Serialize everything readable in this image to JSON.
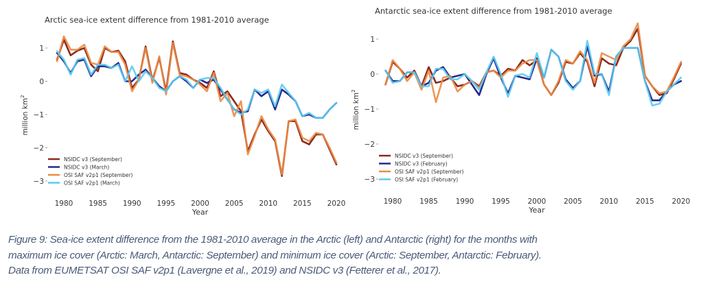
{
  "chart_data": [
    {
      "type": "line",
      "title": "Arctic sea-ice extent difference from 1981-2010 average",
      "xlabel": "Year",
      "ylabel": "million km²",
      "xlim": [
        1977.5,
        2021.5
      ],
      "ylim": [
        -3.3,
        1.4
      ],
      "xticks": [
        1980,
        1985,
        1990,
        1995,
        2000,
        2005,
        2010,
        2015,
        2020
      ],
      "xtick_labels": [
        "1980",
        "1985",
        "1990",
        "1995",
        "2000",
        "2005",
        "2010",
        "2015",
        "2020"
      ],
      "yticks": [
        1,
        0,
        -1,
        -2,
        -3
      ],
      "ytick_labels": [
        "1",
        "0",
        "−1",
        "−2",
        "−3"
      ],
      "grid": false,
      "legend_position": "bottom-left",
      "x_start": 1979,
      "series": [
        {
          "name": "NSIDC v3 (September)",
          "color": "#8b2a1e",
          "values": [
            0.65,
            1.25,
            0.78,
            0.92,
            1.0,
            0.5,
            0.3,
            1.0,
            0.88,
            0.92,
            0.6,
            -0.2,
            0.05,
            1.05,
            0.02,
            0.7,
            -0.3,
            1.2,
            0.25,
            0.2,
            0.05,
            -0.05,
            -0.2,
            0.3,
            -0.45,
            -0.3,
            -0.6,
            -0.9,
            -2.1,
            -1.6,
            -1.15,
            -1.5,
            -1.8,
            -2.85,
            -1.2,
            -1.2,
            -1.8,
            -1.9,
            -1.6,
            -1.6,
            -2.05,
            -2.5
          ]
        },
        {
          "name": "NSIDC v3 (March)",
          "color": "#252a8c",
          "values": [
            0.85,
            0.6,
            0.25,
            0.6,
            0.65,
            0.15,
            0.45,
            0.45,
            0.4,
            0.55,
            0.0,
            0.0,
            0.2,
            0.35,
            0.1,
            -0.15,
            -0.3,
            0.0,
            0.15,
            0.0,
            -0.2,
            0.05,
            -0.05,
            0.05,
            -0.25,
            -0.55,
            -0.85,
            -0.95,
            -0.9,
            -0.25,
            -0.45,
            -0.3,
            -0.85,
            -0.25,
            -0.4,
            -0.6,
            -1.05,
            -1.0,
            -1.1,
            -1.1,
            -0.85,
            -0.65
          ]
        },
        {
          "name": "OSI SAF v2p1 (September)",
          "color": "#ec8a43",
          "values": [
            0.6,
            1.35,
            0.95,
            0.95,
            1.1,
            0.55,
            0.5,
            1.05,
            0.88,
            0.88,
            0.5,
            -0.3,
            0.05,
            1.0,
            -0.05,
            0.75,
            -0.4,
            1.15,
            0.2,
            0.15,
            0.05,
            -0.1,
            -0.3,
            0.25,
            -0.6,
            -0.35,
            -1.05,
            -0.6,
            -2.2,
            -1.65,
            -1.05,
            -1.45,
            -1.75,
            -2.8,
            -1.2,
            -1.15,
            -1.7,
            -1.8,
            -1.55,
            -1.6,
            -2.0,
            -2.45
          ]
        },
        {
          "name": "OSI SAF v2p1 (March)",
          "color": "#5ccaf0",
          "values": [
            0.9,
            0.65,
            0.2,
            0.65,
            0.7,
            0.2,
            0.5,
            0.5,
            0.4,
            0.5,
            0.0,
            0.45,
            0.0,
            0.3,
            0.1,
            -0.2,
            -0.3,
            0.0,
            0.15,
            0.05,
            -0.2,
            0.05,
            0.1,
            0.1,
            -0.2,
            -0.55,
            -0.85,
            -1.0,
            -0.85,
            -0.25,
            -0.35,
            -0.25,
            -0.75,
            -0.1,
            -0.35,
            -0.6,
            -1.05,
            -0.95,
            -1.1,
            -1.1,
            -0.85,
            -0.65
          ]
        }
      ]
    },
    {
      "type": "line",
      "title": "Antarctic sea-ice extent difference from 1981-2010 average",
      "xlabel": "Year",
      "ylabel": "million km²",
      "xlim": [
        1977.5,
        2021.5
      ],
      "ylim": [
        -3.3,
        1.45
      ],
      "xticks": [
        1980,
        1985,
        1990,
        1995,
        2000,
        2005,
        2010,
        2015,
        2020
      ],
      "xtick_labels": [
        "1980",
        "1985",
        "1990",
        "1995",
        "2000",
        "2005",
        "2010",
        "2015",
        "2020"
      ],
      "yticks": [
        1,
        0,
        -1,
        -2,
        -3
      ],
      "ytick_labels": [
        "1",
        "0",
        "−1",
        "−2",
        "−3"
      ],
      "grid": false,
      "legend_position": "bottom-left",
      "x_start": 1979,
      "series": [
        {
          "name": "NSIDC v3 (September)",
          "color": "#8b2a1e",
          "values": [
            -0.3,
            0.35,
            0.15,
            -0.1,
            0.1,
            -0.35,
            0.2,
            -0.25,
            -0.2,
            -0.1,
            -0.35,
            -0.3,
            -0.2,
            -0.35,
            0.05,
            0.1,
            -0.05,
            0.15,
            0.1,
            0.4,
            0.25,
            0.4,
            -0.3,
            -0.6,
            -0.25,
            0.35,
            0.3,
            0.6,
            0.35,
            -0.35,
            0.45,
            0.3,
            0.25,
            0.75,
            0.95,
            1.3,
            -0.05,
            -0.35,
            -0.6,
            -0.55,
            -0.15,
            0.3
          ]
        },
        {
          "name": "NSIDC v3 (February)",
          "color": "#252a8c",
          "values": [
            0.1,
            -0.2,
            -0.2,
            0.05,
            0.05,
            -0.35,
            -0.25,
            0.1,
            0.2,
            -0.1,
            -0.05,
            0.0,
            -0.3,
            -0.6,
            0.0,
            0.45,
            -0.1,
            -0.55,
            -0.05,
            -0.1,
            -0.15,
            0.45,
            -0.1,
            0.7,
            0.5,
            -0.15,
            -0.4,
            -0.2,
            0.8,
            -0.05,
            0.0,
            -0.5,
            0.5,
            0.75,
            0.75,
            0.75,
            -0.2,
            -0.75,
            -0.75,
            -0.5,
            -0.3,
            -0.2
          ]
        },
        {
          "name": "OSI SAF v2p1 (September)",
          "color": "#ec8a43",
          "values": [
            -0.3,
            0.4,
            0.15,
            -0.2,
            0.05,
            -0.45,
            0.1,
            -0.8,
            -0.1,
            -0.05,
            -0.5,
            -0.3,
            -0.2,
            -0.4,
            0.05,
            0.1,
            -0.1,
            0.1,
            0.1,
            0.3,
            0.4,
            0.4,
            -0.3,
            -0.6,
            -0.2,
            0.4,
            0.3,
            0.65,
            0.4,
            -0.25,
            0.6,
            0.5,
            0.4,
            0.8,
            1.0,
            1.45,
            -0.05,
            -0.35,
            -0.55,
            -0.5,
            -0.1,
            0.35
          ]
        },
        {
          "name": "OSI SAF v2p1 (February)",
          "color": "#5ccaf0",
          "values": [
            0.1,
            -0.25,
            -0.2,
            0.05,
            0.05,
            -0.35,
            -0.35,
            0.15,
            0.15,
            -0.15,
            -0.15,
            0.0,
            -0.2,
            -0.45,
            0.05,
            0.5,
            0.0,
            -0.65,
            -0.05,
            0.0,
            -0.1,
            0.6,
            -0.1,
            0.7,
            0.5,
            -0.2,
            -0.45,
            -0.2,
            0.95,
            0.0,
            0.0,
            -0.6,
            0.5,
            0.75,
            0.75,
            0.75,
            -0.2,
            -0.9,
            -0.85,
            -0.5,
            -0.3,
            -0.1
          ]
        }
      ]
    }
  ],
  "caption": {
    "lines": [
      "Figure 9: Sea-ice extent difference from the 1981-2010 average in the Arctic (left) and Antarctic (right) for the months with",
      "maximum ice cover (Arctic: March, Antarctic: September) and minimum ice cover (Arctic: September, Antarctic: February).",
      "Data from EUMETSAT OSI SAF v2p1 (Lavergne et al., 2019) and NSIDC v3 (Fetterer et al., 2017)."
    ]
  }
}
